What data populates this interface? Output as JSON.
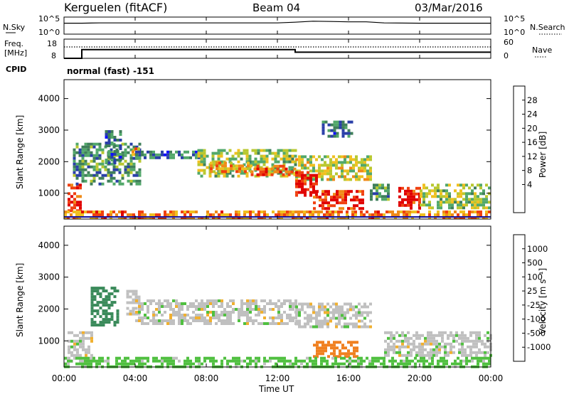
{
  "header": {
    "station": "Kerguelen (fitACF)",
    "beam": "Beam 04",
    "date": "03/Mar/2016"
  },
  "top_panels": {
    "nsky_label": "N.Sky",
    "nsky_ticks": [
      "10^5",
      "10^0"
    ],
    "nsearch_label": "N.Search",
    "nsearch_ticks": [
      "10^5",
      "10^0"
    ],
    "freq_label_1": "Freq.",
    "freq_label_2": "[MHz]",
    "freq_ticks": [
      "18",
      "8"
    ],
    "nave_label": "Nave",
    "nave_ticks": [
      "60",
      "0"
    ],
    "cpid_label": "CPID",
    "cpid_text": "normal (fast) -151"
  },
  "axes": {
    "xlabel": "Time UT",
    "x_ticks": [
      "00:00",
      "04:00",
      "08:00",
      "12:00",
      "16:00",
      "20:00",
      "00:00"
    ],
    "ylabel": "Slant Range [km]",
    "y_ticks": [
      "1000",
      "2000",
      "3000",
      "4000"
    ]
  },
  "colorbars": {
    "power": {
      "label": "Power [dB]",
      "ticks": [
        "28",
        "24",
        "20",
        "16",
        "12",
        "8",
        "4"
      ],
      "colors": [
        "#1010ff",
        "#2a3fa8",
        "#3f7f5a",
        "#52a86a",
        "#b8c830",
        "#f0c020",
        "#f08a18",
        "#f04010",
        "#e00000"
      ]
    },
    "velocity": {
      "label": "Velocity [m s⁻¹]",
      "ticks": [
        "1000",
        "500",
        "100",
        "25",
        "-25",
        "-100",
        "-500",
        "-1000"
      ],
      "colors": [
        "#1a3fb0",
        "#2a7ab0",
        "#3a8a5a",
        "#50c040",
        "#c0c0c0",
        "#f0b030",
        "#f08020",
        "#f04010",
        "#e00000"
      ]
    }
  },
  "chart_data": [
    {
      "type": "line",
      "title": "Kerguelen (fitACF)",
      "subtitle": "Beam 04",
      "name": "N.Sky / N.Search",
      "x_range_hours": [
        0,
        24
      ],
      "series": [
        {
          "x": [
            0,
            1,
            2,
            4,
            6,
            8,
            10,
            12,
            13,
            14,
            15,
            16,
            17,
            18,
            20,
            22,
            24
          ],
          "values": [
            3.2,
            3.2,
            3.3,
            3.3,
            3.3,
            3.3,
            3.3,
            3.3,
            3.5,
            3.8,
            3.7,
            3.6,
            3.6,
            3.3,
            3.2,
            3.2,
            3.2
          ]
        }
      ]
    },
    {
      "type": "line",
      "name": "Freq / Nave",
      "x_range_hours": [
        0,
        24
      ],
      "series": [
        {
          "x": [
            0,
            1,
            1,
            13,
            13,
            24
          ],
          "values": [
            8,
            8,
            12.5,
            12.5,
            11.2,
            11.2
          ]
        },
        {
          "x": [
            0,
            24
          ],
          "values": [
            45,
            45
          ]
        }
      ]
    },
    {
      "type": "heatmap",
      "name": "Power",
      "xlabel": "Time UT",
      "ylabel": "Slant Range [km]",
      "x_range_hours": [
        0,
        24
      ],
      "ylim": [
        180,
        4600
      ],
      "zlim": [
        0,
        30
      ],
      "z_label": "Power [dB]",
      "regions": [
        {
          "t": [
            0.2,
            1.0
          ],
          "r": [
            400,
            1300
          ],
          "z": 26
        },
        {
          "t": [
            0.5,
            4.2
          ],
          "r": [
            1300,
            2600
          ],
          "z": 10
        },
        {
          "t": [
            2.3,
            3.2
          ],
          "r": [
            2000,
            3000
          ],
          "z": 8
        },
        {
          "t": [
            3.8,
            4.2
          ],
          "r": [
            2250,
            2450
          ],
          "z": 20
        },
        {
          "t": [
            4.0,
            8.0
          ],
          "r": [
            2100,
            2350
          ],
          "z": 8
        },
        {
          "t": [
            7.5,
            13.0
          ],
          "r": [
            1500,
            2400
          ],
          "z": 14
        },
        {
          "t": [
            8.2,
            10.5
          ],
          "r": [
            1700,
            2000
          ],
          "z": 20
        },
        {
          "t": [
            10.5,
            13.0
          ],
          "r": [
            1550,
            1900
          ],
          "z": 24
        },
        {
          "t": [
            13.0,
            17.2
          ],
          "r": [
            1400,
            2200
          ],
          "z": 16
        },
        {
          "t": [
            13.0,
            14.2
          ],
          "r": [
            900,
            1700
          ],
          "z": 28
        },
        {
          "t": [
            14.0,
            16.8
          ],
          "r": [
            500,
            1100
          ],
          "z": 26
        },
        {
          "t": [
            14.5,
            16.2
          ],
          "r": [
            2800,
            3300
          ],
          "z": 8
        },
        {
          "t": [
            17.2,
            18.2
          ],
          "r": [
            800,
            1300
          ],
          "z": 10
        },
        {
          "t": [
            18.8,
            20.0
          ],
          "r": [
            500,
            1200
          ],
          "z": 28
        },
        {
          "t": [
            20.0,
            24.0
          ],
          "r": [
            500,
            1300
          ],
          "z": 14
        },
        {
          "t": [
            0.0,
            24.0
          ],
          "r": [
            200,
            450
          ],
          "z": 22
        }
      ]
    },
    {
      "type": "heatmap",
      "name": "Velocity",
      "xlabel": "Time UT",
      "ylabel": "Slant Range [km]",
      "x_range_hours": [
        0,
        24
      ],
      "ylim": [
        180,
        4600
      ],
      "z_label": "Velocity [m s⁻¹]",
      "regions": [
        {
          "t": [
            0.2,
            1.5
          ],
          "r": [
            400,
            1300
          ],
          "z": 0
        },
        {
          "t": [
            1.5,
            3.0
          ],
          "r": [
            1500,
            2700
          ],
          "z": 300
        },
        {
          "t": [
            3.5,
            4.2
          ],
          "r": [
            1800,
            2600
          ],
          "z": 0
        },
        {
          "t": [
            4.0,
            13.0
          ],
          "r": [
            1500,
            2300
          ],
          "z": 0
        },
        {
          "t": [
            13.0,
            17.2
          ],
          "r": [
            1400,
            2200
          ],
          "z": 0
        },
        {
          "t": [
            14.0,
            16.5
          ],
          "r": [
            500,
            1000
          ],
          "z": -300
        },
        {
          "t": [
            18.0,
            24.0
          ],
          "r": [
            500,
            1300
          ],
          "z": 0
        },
        {
          "t": [
            0.0,
            24.0
          ],
          "r": [
            200,
            500
          ],
          "z": 50
        }
      ]
    }
  ]
}
